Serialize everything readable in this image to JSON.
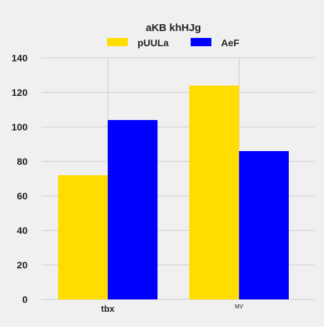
{
  "chart_data": {
    "type": "bar",
    "title": "aKB khHJg",
    "xlabel": "",
    "ylabel": "",
    "categories": [
      "tbx",
      "MV"
    ],
    "series": [
      {
        "name": "pUULa",
        "values": [
          72,
          124
        ]
      },
      {
        "name": "AeF",
        "values": [
          104,
          86
        ]
      }
    ],
    "ylim": [
      0,
      140
    ],
    "yticks": [
      "0",
      "20",
      "40",
      "60",
      "80",
      "100",
      "120",
      "140"
    ],
    "grid": true,
    "legend_position": "top-center"
  },
  "colors": {
    "background": "#f0f0f0",
    "grid": "#cbcbcb",
    "series": [
      "#ffdd00",
      "#0000ff"
    ]
  }
}
